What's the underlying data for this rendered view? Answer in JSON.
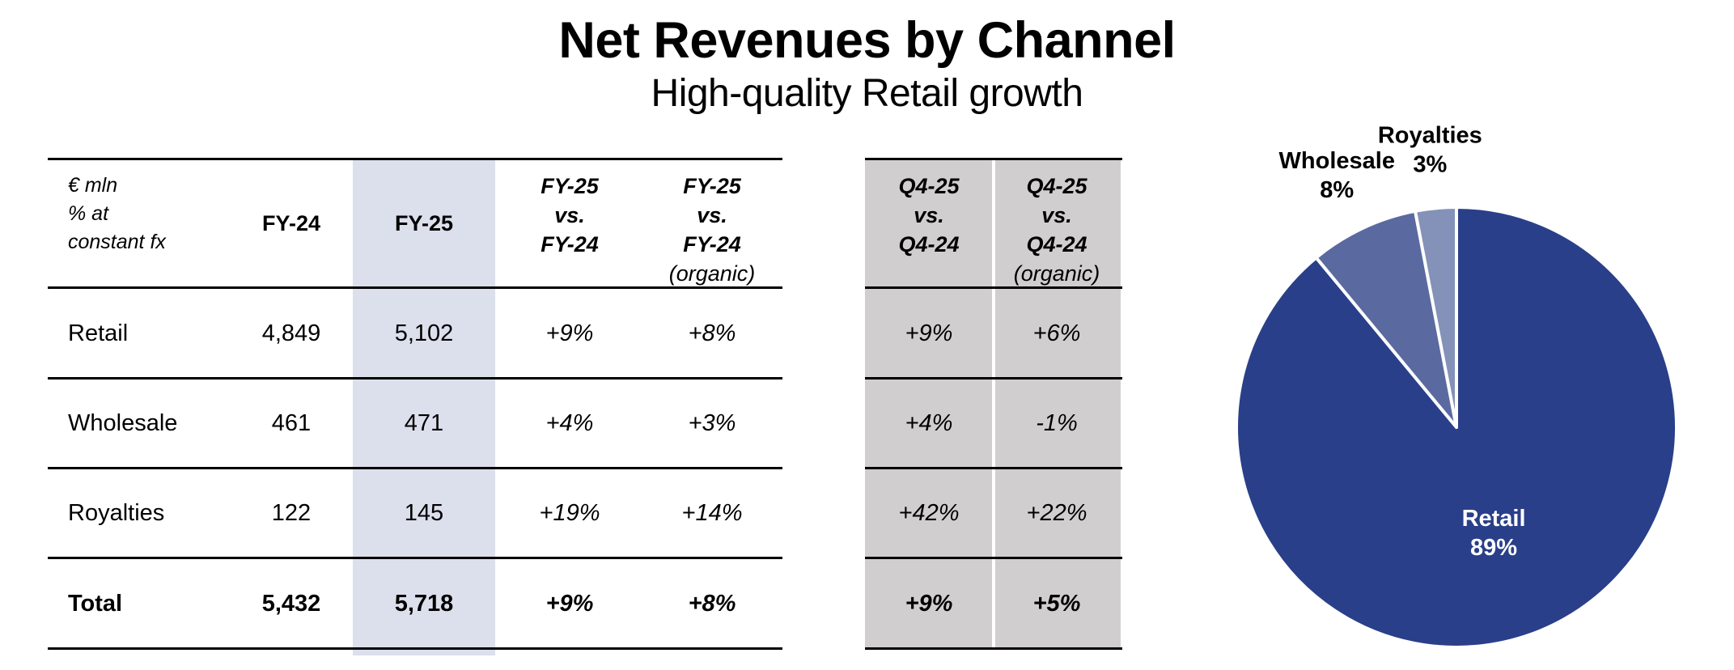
{
  "header": {
    "title": "Net Revenues by Channel",
    "subtitle": "High-quality Retail growth"
  },
  "table": {
    "unit_lines": [
      "€ mln",
      "% at",
      "constant fx"
    ],
    "columns": [
      {
        "lines": [
          "FY-24"
        ],
        "style": "bold"
      },
      {
        "lines": [
          "FY-25"
        ],
        "style": "bold",
        "highlight": true
      },
      {
        "lines": [
          "FY-25",
          "vs.",
          "FY-24"
        ],
        "style": "bold-italic"
      },
      {
        "lines": [
          "FY-25",
          "vs.",
          "FY-24",
          "(organic)"
        ],
        "style": "bold-italic"
      },
      {
        "lines": [
          "Q4-25",
          "vs.",
          "Q4-24"
        ],
        "style": "bold-italic",
        "group": "quarter"
      },
      {
        "lines": [
          "Q4-25",
          "vs.",
          "Q4-24",
          "(organic)"
        ],
        "style": "bold-italic",
        "group": "quarter"
      }
    ],
    "rows": [
      {
        "label": "Retail",
        "values": [
          "4,849",
          "5,102",
          "+9%",
          "+8%",
          "+9%",
          "+6%"
        ],
        "bold": false
      },
      {
        "label": "Wholesale",
        "values": [
          "461",
          "471",
          "+4%",
          "+3%",
          "+4%",
          "-1%"
        ],
        "bold": false
      },
      {
        "label": "Royalties",
        "values": [
          "122",
          "145",
          "+19%",
          "+14%",
          "+42%",
          "+22%"
        ],
        "bold": false
      },
      {
        "label": "Total",
        "values": [
          "5,432",
          "5,718",
          "+9%",
          "+8%",
          "+9%",
          "+5%"
        ],
        "bold": true
      }
    ],
    "colors": {
      "highlight": "#dcdfec",
      "quarter_shade": "#d0cecf"
    }
  },
  "chart_data": {
    "type": "pie",
    "title": "",
    "start": "12 o'clock, clockwise",
    "slices": [
      {
        "label": "Retail",
        "value": 89,
        "display": "89%",
        "color": "#2a3f89",
        "label_color": "#ffffff",
        "label_position": "inside"
      },
      {
        "label": "Wholesale",
        "value": 8,
        "display": "8%",
        "color": "#5a6aa0",
        "label_color": "#000000",
        "label_position": "outside"
      },
      {
        "label": "Royalties",
        "value": 3,
        "display": "3%",
        "color": "#8491b8",
        "label_color": "#000000",
        "label_position": "outside"
      }
    ]
  }
}
